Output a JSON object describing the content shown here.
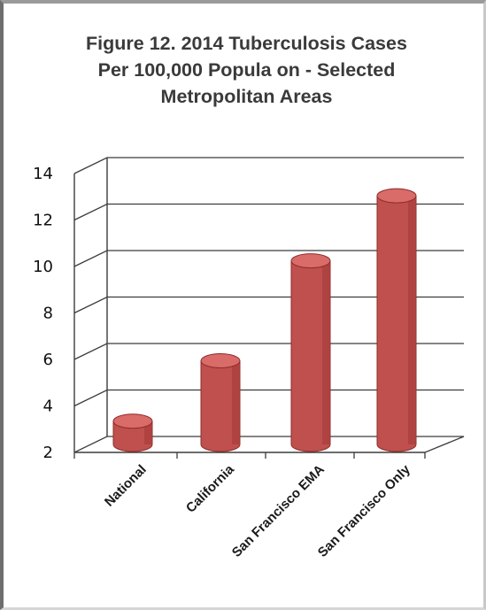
{
  "title_lines": [
    "Figure 12. 2014 Tuberculosis Cases",
    "Per 100,000 Popula   on - Selected",
    "Metropolitan Areas"
  ],
  "colors": {
    "bar_fill": "#c0504d",
    "bar_dark": "#8e2c2a",
    "bar_top": "#d96b68",
    "gridline": "#3c3c3c"
  },
  "chart_data": {
    "type": "bar",
    "title": "Figure 12. 2014 Tuberculosis Cases Per 100,000 Popula   on - Selected Metropolitan Areas",
    "categories": [
      "National",
      "California",
      "San Francisco EMA",
      "San Francisco Only"
    ],
    "values": [
      3.0,
      5.6,
      9.9,
      12.7
    ],
    "xlabel": "",
    "ylabel": "",
    "ylim": [
      2,
      14
    ],
    "yticks": [
      "2",
      "4",
      "6",
      "8",
      "10",
      "12",
      "14"
    ],
    "grid": true,
    "legend": "none",
    "style": "3d-cylinder"
  }
}
